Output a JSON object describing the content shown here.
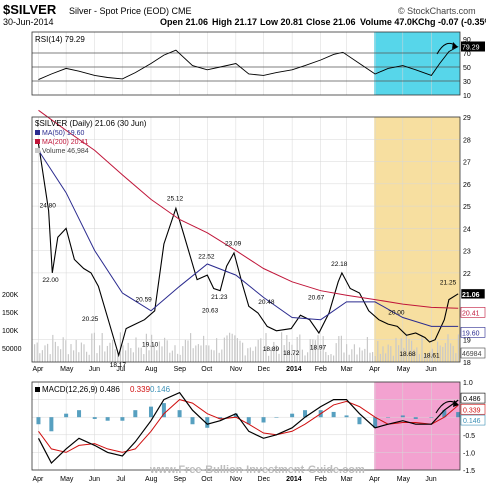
{
  "header": {
    "symbol": "$SILVER",
    "name": "Silver - Spot Price (EOD) CME",
    "date": "30-Jun-2014",
    "open": "Open 21.06",
    "high": "High 21.17",
    "low": "Low 20.81",
    "close": "Close 21.06",
    "volume": "Volume 47.0K",
    "chg": "Chg -0.07 (-0.35%)",
    "brand": "© StockCharts.com",
    "watermark": "www.Free-Bullion-Investment-Guide.com"
  },
  "colors": {
    "price": "#000000",
    "ma50": "#2b2b8f",
    "ma200": "#c0163a",
    "volume": "#c9c9c9",
    "rsi_highlight": "#57d6ea",
    "price_highlight": "#f7dfa0",
    "macd_highlight": "#f3a2d0",
    "macd_line": "#000000",
    "signal_line": "#d01010",
    "histogram": "#3a8fb5"
  },
  "chart_data": [
    {
      "type": "line",
      "panel": "rsi",
      "legend": "RSI(14) 79.29",
      "ylim": [
        10,
        100
      ],
      "y_ticks": [
        10,
        30,
        50,
        70,
        90
      ],
      "ref_lines": [
        30,
        50,
        70
      ],
      "last_value_label": "79.29",
      "series": [
        {
          "name": "RSI(14)",
          "x": [
            "2013-04-01",
            "2013-04-15",
            "2013-05-01",
            "2013-05-15",
            "2013-06-01",
            "2013-06-15",
            "2013-07-01",
            "2013-07-15",
            "2013-08-01",
            "2013-08-15",
            "2013-08-28",
            "2013-09-15",
            "2013-10-01",
            "2013-10-15",
            "2013-11-01",
            "2013-11-15",
            "2013-12-01",
            "2013-12-15",
            "2014-01-01",
            "2014-01-15",
            "2014-02-01",
            "2014-02-15",
            "2014-02-25",
            "2014-03-15",
            "2014-04-01",
            "2014-04-15",
            "2014-05-01",
            "2014-05-15",
            "2014-06-01",
            "2014-06-10",
            "2014-06-20",
            "2014-06-30"
          ],
          "y": [
            32,
            40,
            48,
            44,
            38,
            35,
            33,
            42,
            55,
            67,
            74,
            52,
            46,
            50,
            55,
            40,
            38,
            42,
            46,
            52,
            60,
            68,
            71,
            55,
            40,
            48,
            52,
            46,
            38,
            55,
            72,
            79.29
          ]
        }
      ],
      "annotations": [
        "90",
        "79.29",
        "70",
        "50",
        "30",
        "10"
      ]
    },
    {
      "type": "line",
      "panel": "price",
      "title": "$SILVER (Daily) 21.06 (30 Jun)",
      "legend": [
        "MA(50) 19.60",
        "MA(200) 20.41",
        "Volume 46,984"
      ],
      "ylim": [
        18,
        29
      ],
      "y_ticks": [
        18,
        19,
        20,
        21,
        22,
        23,
        24,
        25,
        26,
        27,
        28,
        29
      ],
      "x_ticks": [
        "Apr",
        "May",
        "Jun",
        "Jul",
        "Aug",
        "Sep",
        "Oct",
        "Nov",
        "Dec",
        "2014",
        "Feb",
        "Mar",
        "Apr",
        "May",
        "Jun"
      ],
      "volume_ticks": [
        "200K",
        "150K",
        "100K",
        "50000"
      ],
      "last_value_labels": [
        "21.06",
        "20.41",
        "19.60",
        "46984"
      ],
      "annotations": [
        "24.80",
        "22.00",
        "20.25",
        "18.17",
        "19.10",
        "20.59",
        "25.12",
        "22.52",
        "21.23",
        "20.63",
        "23.09",
        "20.48",
        "18.89",
        "18.72",
        "18.97",
        "20.67",
        "22.18",
        "20.00",
        "18.68",
        "18.61",
        "21.25"
      ],
      "series": [
        {
          "name": "Price",
          "x": [
            "2013-04-01",
            "2013-04-12",
            "2013-04-16",
            "2013-04-22",
            "2013-05-01",
            "2013-05-10",
            "2013-05-20",
            "2013-05-28",
            "2013-06-05",
            "2013-06-15",
            "2013-06-27",
            "2013-07-05",
            "2013-07-15",
            "2013-07-25",
            "2013-08-05",
            "2013-08-15",
            "2013-08-28",
            "2013-09-05",
            "2013-09-15",
            "2013-09-20",
            "2013-10-01",
            "2013-10-08",
            "2013-10-15",
            "2013-10-22",
            "2013-10-30",
            "2013-11-08",
            "2013-11-15",
            "2013-11-25",
            "2013-12-05",
            "2013-12-15",
            "2013-12-31",
            "2014-01-10",
            "2014-01-20",
            "2014-01-30",
            "2014-02-10",
            "2014-02-20",
            "2014-02-24",
            "2014-03-05",
            "2014-03-15",
            "2014-03-25",
            "2014-04-05",
            "2014-04-15",
            "2014-04-25",
            "2014-05-05",
            "2014-05-15",
            "2014-05-25",
            "2014-05-30",
            "2014-06-05",
            "2014-06-15",
            "2014-06-20",
            "2014-06-30"
          ],
          "y": [
            27.8,
            24.8,
            22.0,
            23.6,
            24.0,
            22.6,
            22.2,
            22.0,
            21.4,
            20.0,
            18.3,
            19.5,
            19.7,
            19.9,
            20.3,
            23.3,
            24.9,
            23.8,
            22.4,
            21.7,
            21.9,
            21.3,
            21.2,
            22.3,
            22.9,
            21.5,
            20.5,
            20.2,
            19.6,
            19.4,
            19.5,
            20.1,
            19.9,
            19.3,
            20.2,
            21.6,
            22.0,
            21.3,
            21.1,
            20.3,
            19.9,
            19.7,
            19.6,
            19.2,
            19.3,
            19.1,
            18.9,
            19.0,
            19.9,
            20.8,
            21.06
          ]
        },
        {
          "name": "MA(50)",
          "x": [
            "2013-04-01",
            "2013-05-01",
            "2013-06-01",
            "2013-07-01",
            "2013-08-01",
            "2013-09-01",
            "2013-10-01",
            "2013-11-01",
            "2013-12-01",
            "2014-01-01",
            "2014-02-01",
            "2014-03-01",
            "2014-04-01",
            "2014-05-01",
            "2014-06-01",
            "2014-06-30"
          ],
          "y": [
            27.5,
            25.6,
            23.0,
            21.1,
            20.3,
            21.4,
            22.4,
            21.9,
            20.9,
            20.0,
            19.9,
            20.7,
            20.7,
            20.0,
            19.6,
            19.6
          ]
        },
        {
          "name": "MA(200)",
          "x": [
            "2013-04-01",
            "2013-05-01",
            "2013-06-01",
            "2013-07-01",
            "2013-08-01",
            "2013-09-01",
            "2013-10-01",
            "2013-11-01",
            "2013-12-01",
            "2014-01-01",
            "2014-02-01",
            "2014-03-01",
            "2014-04-01",
            "2014-05-01",
            "2014-06-01",
            "2014-06-30"
          ],
          "y": [
            29.3,
            28.4,
            27.5,
            26.4,
            25.3,
            24.4,
            23.8,
            23.0,
            22.2,
            21.6,
            21.2,
            21.0,
            20.8,
            20.6,
            20.45,
            20.41
          ]
        }
      ]
    },
    {
      "type": "line",
      "panel": "macd",
      "legend": [
        "MACD(12,26,9) 0.486",
        "0.339",
        "0.146"
      ],
      "ylim": [
        -1.5,
        1.0
      ],
      "y_ticks": [
        1.0,
        0.5,
        0.0,
        -0.5,
        -1.0,
        -1.5
      ],
      "x_ticks": [
        "Apr",
        "May",
        "Jun",
        "Jul",
        "Aug",
        "Sep",
        "Oct",
        "Nov",
        "Dec",
        "2014",
        "Feb",
        "Mar",
        "Apr",
        "May",
        "Jun"
      ],
      "last_value_labels": [
        "0.486",
        "0.339",
        "0.146"
      ],
      "series": [
        {
          "name": "MACD",
          "x": [
            "2013-04-01",
            "2013-04-15",
            "2013-05-01",
            "2013-05-15",
            "2013-06-01",
            "2013-06-15",
            "2013-07-01",
            "2013-07-15",
            "2013-08-01",
            "2013-08-15",
            "2013-09-01",
            "2013-09-15",
            "2013-10-01",
            "2013-10-15",
            "2013-11-01",
            "2013-11-15",
            "2013-12-01",
            "2013-12-15",
            "2014-01-01",
            "2014-01-15",
            "2014-02-01",
            "2014-02-15",
            "2014-03-01",
            "2014-03-15",
            "2014-04-01",
            "2014-04-15",
            "2014-05-01",
            "2014-05-15",
            "2014-06-01",
            "2014-06-15",
            "2014-06-30"
          ],
          "y": [
            -0.6,
            -1.3,
            -0.9,
            -0.6,
            -0.8,
            -1.0,
            -1.1,
            -0.7,
            -0.1,
            0.5,
            0.7,
            0.2,
            -0.2,
            -0.1,
            0.1,
            -0.4,
            -0.6,
            -0.5,
            -0.3,
            0.0,
            0.3,
            0.5,
            0.5,
            0.1,
            -0.3,
            -0.2,
            -0.1,
            -0.2,
            -0.2,
            0.2,
            0.486
          ]
        },
        {
          "name": "Signal",
          "x": [
            "2013-04-01",
            "2013-04-15",
            "2013-05-01",
            "2013-05-15",
            "2013-06-01",
            "2013-06-15",
            "2013-07-01",
            "2013-07-15",
            "2013-08-01",
            "2013-08-15",
            "2013-09-01",
            "2013-09-15",
            "2013-10-01",
            "2013-10-15",
            "2013-11-01",
            "2013-11-15",
            "2013-12-01",
            "2013-12-15",
            "2014-01-01",
            "2014-01-15",
            "2014-02-01",
            "2014-02-15",
            "2014-03-01",
            "2014-03-15",
            "2014-04-01",
            "2014-04-15",
            "2014-05-01",
            "2014-05-15",
            "2014-06-01",
            "2014-06-15",
            "2014-06-30"
          ],
          "y": [
            -0.4,
            -0.9,
            -1.0,
            -0.8,
            -0.75,
            -0.9,
            -1.0,
            -0.9,
            -0.4,
            0.1,
            0.5,
            0.4,
            0.1,
            -0.05,
            0.0,
            -0.2,
            -0.45,
            -0.5,
            -0.4,
            -0.2,
            0.1,
            0.35,
            0.45,
            0.3,
            0.0,
            -0.2,
            -0.15,
            -0.15,
            -0.2,
            0.0,
            0.339
          ]
        },
        {
          "name": "Histogram",
          "x": [
            "2013-04-01",
            "2013-04-15",
            "2013-05-01",
            "2013-05-15",
            "2013-06-01",
            "2013-06-15",
            "2013-07-01",
            "2013-07-15",
            "2013-08-01",
            "2013-08-15",
            "2013-09-01",
            "2013-09-15",
            "2013-10-01",
            "2013-10-15",
            "2013-11-01",
            "2013-11-15",
            "2013-12-01",
            "2013-12-15",
            "2014-01-01",
            "2014-01-15",
            "2014-02-01",
            "2014-02-15",
            "2014-03-01",
            "2014-03-15",
            "2014-04-01",
            "2014-04-15",
            "2014-05-01",
            "2014-05-15",
            "2014-06-01",
            "2014-06-15",
            "2014-06-30"
          ],
          "y": [
            -0.2,
            -0.4,
            0.1,
            0.2,
            -0.05,
            -0.1,
            -0.1,
            0.2,
            0.3,
            0.4,
            0.2,
            -0.2,
            -0.3,
            -0.05,
            0.1,
            -0.2,
            -0.15,
            0.0,
            0.1,
            0.2,
            0.2,
            0.15,
            0.05,
            -0.2,
            -0.3,
            0.0,
            0.05,
            -0.05,
            0.0,
            0.2,
            0.146
          ]
        }
      ]
    }
  ]
}
